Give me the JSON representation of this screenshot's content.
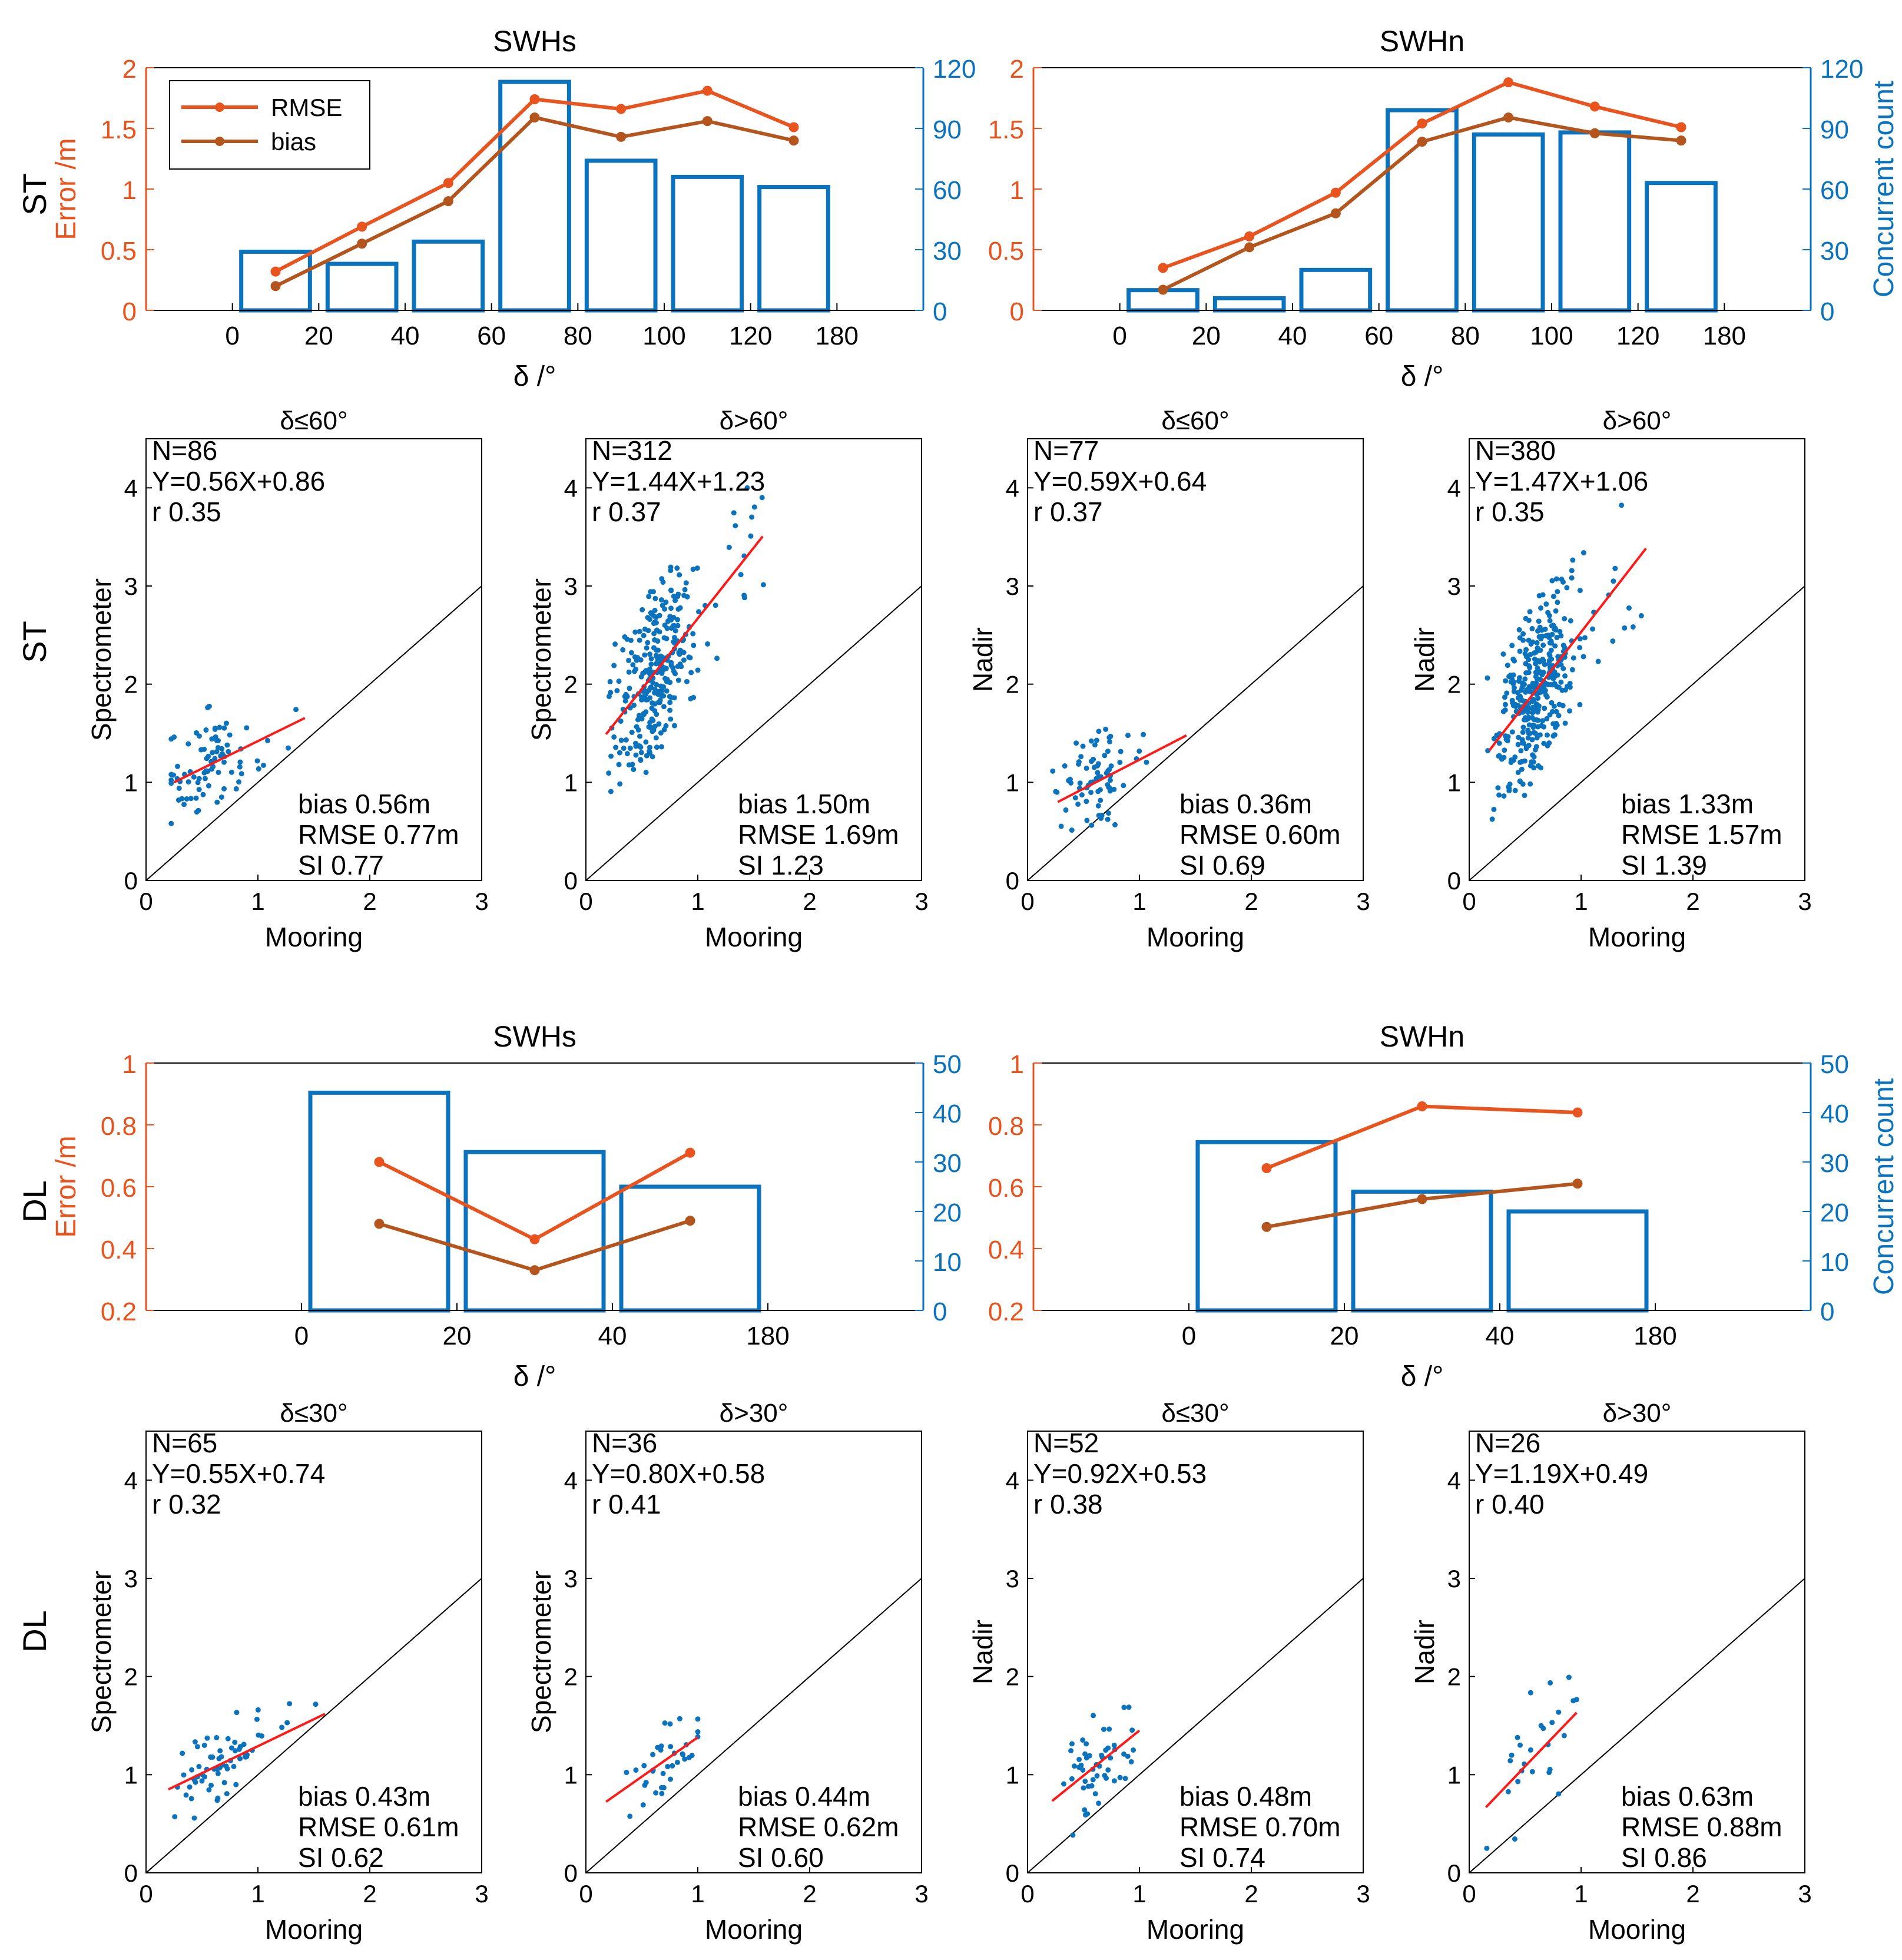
{
  "colors": {
    "rmse": "#e8531e",
    "bias": "#b4551e",
    "bar": "#0b72bd",
    "left_axis": "#e8531e",
    "right_axis": "#0b72bd",
    "scatter": "#0b72bd",
    "fit": "#ff1a1a",
    "identity": "#000000",
    "frame": "#000000"
  },
  "row_labels": [
    "ST",
    "ST",
    "DL",
    "DL"
  ],
  "chart_data": [
    {
      "id": "st-swhs",
      "type": "bar",
      "title": "SWHs",
      "xlabel": "δ /°",
      "ylabel": "Error /m",
      "y2label": "",
      "x_tick_labels": [
        "0",
        "20",
        "40",
        "60",
        "80",
        "100",
        "120",
        "180"
      ],
      "ylim": [
        0,
        2
      ],
      "y_ticks": [
        "0",
        "0.5",
        "1",
        "1.5",
        "2"
      ],
      "y2lim": [
        0,
        120
      ],
      "y2_ticks": [
        "0",
        "30",
        "60",
        "90",
        "120"
      ],
      "legend": [
        "RMSE",
        "bias"
      ],
      "legend_position": "top-left",
      "categories": [
        "0-20",
        "20-40",
        "40-60",
        "60-80",
        "80-100",
        "100-120",
        "120-180"
      ],
      "bars": [
        29,
        23,
        34,
        113,
        74,
        66,
        61
      ],
      "series": [
        {
          "name": "RMSE",
          "values": [
            0.32,
            0.69,
            1.05,
            1.74,
            1.66,
            1.81,
            1.51
          ]
        },
        {
          "name": "bias",
          "values": [
            0.2,
            0.55,
            0.9,
            1.59,
            1.43,
            1.56,
            1.4
          ]
        }
      ]
    },
    {
      "id": "st-swhn",
      "type": "bar",
      "title": "SWHn",
      "xlabel": "δ /°",
      "ylabel": "",
      "y2label": "Concurrent count",
      "x_tick_labels": [
        "0",
        "20",
        "40",
        "60",
        "80",
        "100",
        "120",
        "180"
      ],
      "ylim": [
        0,
        2
      ],
      "y_ticks": [
        "0",
        "0.5",
        "1",
        "1.5",
        "2"
      ],
      "y2lim": [
        0,
        120
      ],
      "y2_ticks": [
        "0",
        "30",
        "60",
        "90",
        "120"
      ],
      "legend": [],
      "categories": [
        "0-20",
        "20-40",
        "40-60",
        "60-80",
        "80-100",
        "100-120",
        "120-180"
      ],
      "bars": [
        10,
        6,
        20,
        99,
        87,
        88,
        63
      ],
      "series": [
        {
          "name": "RMSE",
          "values": [
            0.35,
            0.61,
            0.97,
            1.54,
            1.88,
            1.68,
            1.51
          ]
        },
        {
          "name": "bias",
          "values": [
            0.17,
            0.52,
            0.8,
            1.39,
            1.59,
            1.46,
            1.4
          ]
        }
      ]
    },
    {
      "id": "dl-swhs",
      "type": "bar",
      "title": "SWHs",
      "xlabel": "δ /°",
      "ylabel": "Error /m",
      "y2label": "",
      "x_tick_labels": [
        "0",
        "20",
        "40",
        "180"
      ],
      "ylim": [
        0.2,
        1
      ],
      "y_ticks": [
        "0.2",
        "0.4",
        "0.6",
        "0.8",
        "1"
      ],
      "y2lim": [
        0,
        50
      ],
      "y2_ticks": [
        "0",
        "10",
        "20",
        "30",
        "40",
        "50"
      ],
      "legend": [],
      "categories": [
        "0-20",
        "20-40",
        "40-180"
      ],
      "bars": [
        44,
        32,
        25
      ],
      "series": [
        {
          "name": "RMSE",
          "values": [
            0.68,
            0.43,
            0.71
          ]
        },
        {
          "name": "bias",
          "values": [
            0.48,
            0.33,
            0.49
          ]
        }
      ]
    },
    {
      "id": "dl-swhn",
      "type": "bar",
      "title": "SWHn",
      "xlabel": "δ /°",
      "ylabel": "",
      "y2label": "Concurrent count",
      "x_tick_labels": [
        "0",
        "20",
        "40",
        "180"
      ],
      "ylim": [
        0.2,
        1
      ],
      "y_ticks": [
        "0.2",
        "0.4",
        "0.6",
        "0.8",
        "1"
      ],
      "y2lim": [
        0,
        50
      ],
      "y2_ticks": [
        "0",
        "10",
        "20",
        "30",
        "40",
        "50"
      ],
      "legend": [],
      "categories": [
        "0-20",
        "20-40",
        "40-180"
      ],
      "bars": [
        34,
        24,
        20
      ],
      "series": [
        {
          "name": "RMSE",
          "values": [
            0.66,
            0.86,
            0.84
          ]
        },
        {
          "name": "bias",
          "values": [
            0.47,
            0.56,
            0.61
          ]
        }
      ]
    },
    {
      "id": "st-spec-le60",
      "type": "scatter",
      "title": "δ≤60°",
      "xlabel": "Mooring",
      "ylabel": "Spectrometer",
      "xlim": [
        0,
        3
      ],
      "ylim": [
        0,
        4.5
      ],
      "x_ticks": [
        "0",
        "1",
        "2",
        "3"
      ],
      "y_ticks": [
        "0",
        "1",
        "2",
        "3",
        "4"
      ],
      "stats_top": [
        "N=86",
        "Y=0.56X+0.86",
        "r 0.35"
      ],
      "stats_bottom": [
        "bias 0.56m",
        "RMSE 0.77m",
        "SI 0.77"
      ],
      "fit": {
        "slope": 0.56,
        "intercept": 0.86,
        "x_range": [
          0.25,
          1.42
        ]
      },
      "n": 86,
      "cluster": [
        0.25,
        1.42,
        0.55,
        0.25
      ],
      "noise": 0.45,
      "seed": 11
    },
    {
      "id": "st-spec-gt60",
      "type": "scatter",
      "title": "δ>60°",
      "xlabel": "Mooring",
      "ylabel": "Spectrometer",
      "xlim": [
        0,
        3
      ],
      "ylim": [
        0,
        4.5
      ],
      "x_ticks": [
        "0",
        "1",
        "2",
        "3"
      ],
      "y_ticks": [
        "0",
        "1",
        "2",
        "3",
        "4"
      ],
      "stats_top": [
        "N=312",
        "Y=1.44X+1.23",
        "r 0.37"
      ],
      "stats_bottom": [
        "bias 1.50m",
        "RMSE 1.69m",
        "SI 1.23"
      ],
      "fit": {
        "slope": 1.44,
        "intercept": 1.23,
        "x_range": [
          0.18,
          1.58
        ]
      },
      "n": 312,
      "cluster": [
        0.15,
        1.6,
        0.62,
        0.2
      ],
      "noise": 0.7,
      "seed": 23
    },
    {
      "id": "st-nadir-le60",
      "type": "scatter",
      "title": "δ≤60°",
      "xlabel": "Mooring",
      "ylabel": "Nadir",
      "xlim": [
        0,
        3
      ],
      "ylim": [
        0,
        4.5
      ],
      "x_ticks": [
        "0",
        "1",
        "2",
        "3"
      ],
      "y_ticks": [
        "0",
        "1",
        "2",
        "3",
        "4"
      ],
      "stats_top": [
        "N=77",
        "Y=0.59X+0.64",
        "r 0.37"
      ],
      "stats_bottom": [
        "bias 0.36m",
        "RMSE 0.60m",
        "SI 0.69"
      ],
      "fit": {
        "slope": 0.59,
        "intercept": 0.64,
        "x_range": [
          0.27,
          1.42
        ]
      },
      "n": 77,
      "cluster": [
        0.25,
        1.42,
        0.6,
        0.25
      ],
      "noise": 0.45,
      "seed": 37
    },
    {
      "id": "st-nadir-gt60",
      "type": "scatter",
      "title": "δ>60°",
      "xlabel": "Mooring",
      "ylabel": "Nadir",
      "xlim": [
        0,
        3
      ],
      "ylim": [
        0,
        4.5
      ],
      "x_ticks": [
        "0",
        "1",
        "2",
        "3"
      ],
      "y_ticks": [
        "0",
        "1",
        "2",
        "3",
        "4"
      ],
      "stats_top": [
        "N=380",
        "Y=1.47X+1.06",
        "r 0.35"
      ],
      "stats_bottom": [
        "bias 1.33m",
        "RMSE 1.57m",
        "SI 1.39"
      ],
      "fit": {
        "slope": 1.47,
        "intercept": 1.06,
        "x_range": [
          0.18,
          1.58
        ]
      },
      "n": 380,
      "cluster": [
        0.15,
        1.6,
        0.6,
        0.2
      ],
      "noise": 0.7,
      "seed": 41
    },
    {
      "id": "dl-spec-le30",
      "type": "scatter",
      "title": "δ≤30°",
      "xlabel": "Mooring",
      "ylabel": "Spectrometer",
      "xlim": [
        0,
        3
      ],
      "ylim": [
        0,
        4.5
      ],
      "x_ticks": [
        "0",
        "1",
        "2",
        "3"
      ],
      "y_ticks": [
        "0",
        "1",
        "2",
        "3",
        "4"
      ],
      "stats_top": [
        "N=65",
        "Y=0.55X+0.74",
        "r 0.32"
      ],
      "stats_bottom": [
        "bias 0.43m",
        "RMSE 0.61m",
        "SI 0.62"
      ],
      "fit": {
        "slope": 0.55,
        "intercept": 0.74,
        "x_range": [
          0.2,
          1.6
        ]
      },
      "n": 65,
      "cluster": [
        0.2,
        1.6,
        0.7,
        0.25
      ],
      "noise": 0.35,
      "seed": 53
    },
    {
      "id": "dl-spec-gt30",
      "type": "scatter",
      "title": "δ>30°",
      "xlabel": "Mooring",
      "ylabel": "Spectrometer",
      "xlim": [
        0,
        3
      ],
      "ylim": [
        0,
        4.5
      ],
      "x_ticks": [
        "0",
        "1",
        "2",
        "3"
      ],
      "y_ticks": [
        "0",
        "1",
        "2",
        "3",
        "4"
      ],
      "stats_top": [
        "N=36",
        "Y=0.80X+0.58",
        "r 0.41"
      ],
      "stats_bottom": [
        "bias 0.44m",
        "RMSE 0.62m",
        "SI 0.60"
      ],
      "fit": {
        "slope": 0.8,
        "intercept": 0.58,
        "x_range": [
          0.18,
          1.0
        ]
      },
      "n": 36,
      "cluster": [
        0.15,
        1.0,
        0.75,
        0.2
      ],
      "noise": 0.35,
      "seed": 67
    },
    {
      "id": "dl-nadir-le30",
      "type": "scatter",
      "title": "δ≤30°",
      "xlabel": "Mooring",
      "ylabel": "Nadir",
      "xlim": [
        0,
        3
      ],
      "ylim": [
        0,
        4.5
      ],
      "x_ticks": [
        "0",
        "1",
        "2",
        "3"
      ],
      "y_ticks": [
        "0",
        "1",
        "2",
        "3",
        "4"
      ],
      "stats_top": [
        "N=52",
        "Y=0.92X+0.53",
        "r 0.38"
      ],
      "stats_bottom": [
        "bias 0.48m",
        "RMSE 0.70m",
        "SI 0.74"
      ],
      "fit": {
        "slope": 0.92,
        "intercept": 0.53,
        "x_range": [
          0.22,
          1.0
        ]
      },
      "n": 52,
      "cluster": [
        0.2,
        1.0,
        0.65,
        0.2
      ],
      "noise": 0.45,
      "seed": 79
    },
    {
      "id": "dl-nadir-gt30",
      "type": "scatter",
      "title": "δ>30°",
      "xlabel": "Mooring",
      "ylabel": "Nadir",
      "xlim": [
        0,
        3
      ],
      "ylim": [
        0,
        4.5
      ],
      "x_ticks": [
        "0",
        "1",
        "2",
        "3"
      ],
      "y_ticks": [
        "0",
        "1",
        "2",
        "3",
        "4"
      ],
      "stats_top": [
        "N=26",
        "Y=1.19X+0.49",
        "r 0.40"
      ],
      "stats_bottom": [
        "bias 0.63m",
        "RMSE 0.88m",
        "SI 0.86"
      ],
      "fit": {
        "slope": 1.19,
        "intercept": 0.49,
        "x_range": [
          0.15,
          0.96
        ]
      },
      "n": 26,
      "cluster": [
        0.15,
        0.96,
        0.7,
        0.2
      ],
      "noise": 0.55,
      "seed": 97
    }
  ]
}
